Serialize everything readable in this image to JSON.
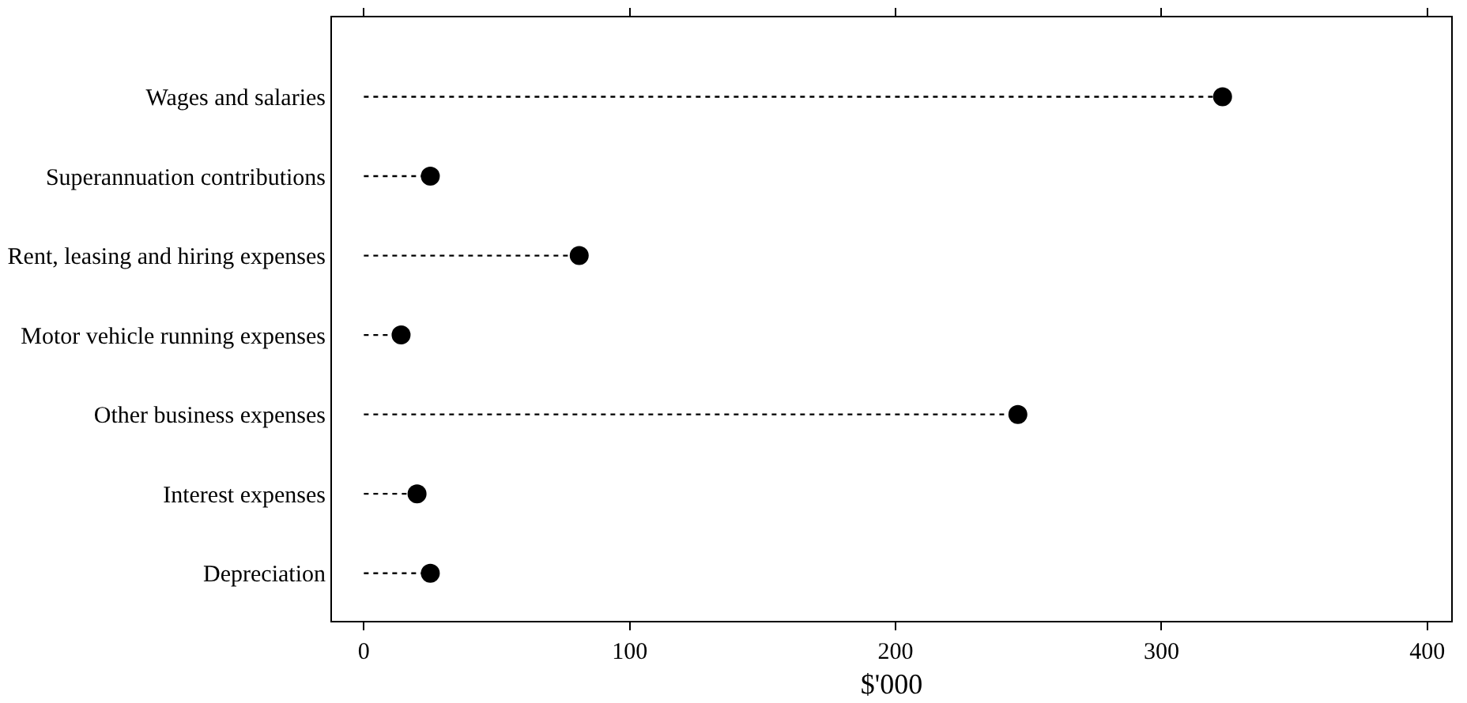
{
  "chart_data": {
    "type": "lollipop",
    "orientation": "horizontal",
    "xlabel": "$'000",
    "categories": [
      "Wages and salaries",
      "Superannuation contributions",
      "Rent, leasing and hiring expenses",
      "Motor vehicle running expenses",
      "Other business expenses",
      "Interest expenses",
      "Depreciation"
    ],
    "values": [
      323,
      25,
      81,
      14,
      246,
      20,
      25
    ],
    "color": "#000000",
    "marker": "circle",
    "line_style": "dotted",
    "xlim": [
      -12,
      409
    ],
    "xticks": [
      0,
      100,
      200,
      300,
      400
    ]
  }
}
